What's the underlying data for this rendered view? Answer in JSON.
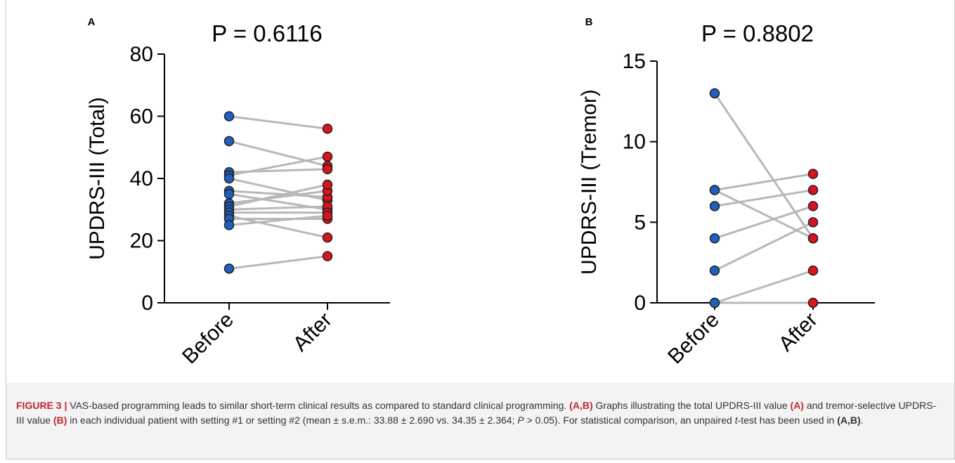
{
  "panels": [
    {
      "label": "A",
      "title": "P = 0.6116",
      "ylabel": "UPDRS-III (Total)",
      "categories": [
        "Before",
        "After"
      ],
      "yticks": [
        0,
        20,
        40,
        60,
        80
      ],
      "ylim": [
        0,
        80
      ]
    },
    {
      "label": "B",
      "title": "P = 0.8802",
      "ylabel": "UPDRS-III (Tremor)",
      "categories": [
        "Before",
        "After"
      ],
      "yticks": [
        0,
        5,
        10,
        15
      ],
      "ylim": [
        0,
        15
      ]
    }
  ],
  "chart_data": [
    {
      "type": "scatter",
      "title": "P = 0.6116",
      "ylabel": "UPDRS-III (Total)",
      "categories": [
        "Before",
        "After"
      ],
      "ylim": [
        0,
        80
      ],
      "series": [
        {
          "name": "Before",
          "color": "#1f5fbf",
          "values": [
            60,
            52,
            42,
            41,
            40,
            36,
            35,
            32,
            31,
            30,
            29,
            28,
            27,
            25,
            11
          ]
        },
        {
          "name": "After",
          "color": "#d8141c",
          "values": [
            56,
            44,
            43,
            47,
            33,
            34,
            30,
            36,
            38,
            31,
            29,
            21,
            27,
            28,
            15
          ]
        }
      ],
      "pairs": [
        [
          60,
          56
        ],
        [
          52,
          44
        ],
        [
          42,
          43
        ],
        [
          41,
          47
        ],
        [
          40,
          33
        ],
        [
          36,
          34
        ],
        [
          35,
          30
        ],
        [
          32,
          36
        ],
        [
          31,
          38
        ],
        [
          30,
          31
        ],
        [
          29,
          29
        ],
        [
          28,
          21
        ],
        [
          27,
          27
        ],
        [
          25,
          28
        ],
        [
          11,
          15
        ]
      ]
    },
    {
      "type": "scatter",
      "title": "P = 0.8802",
      "ylabel": "UPDRS-III (Tremor)",
      "categories": [
        "Before",
        "After"
      ],
      "ylim": [
        0,
        15
      ],
      "series": [
        {
          "name": "Before",
          "color": "#1f5fbf",
          "values": [
            13,
            7,
            7,
            6,
            4,
            2,
            0,
            0
          ]
        },
        {
          "name": "After",
          "color": "#d8141c",
          "values": [
            4,
            8,
            4,
            7,
            6,
            5,
            2,
            0
          ]
        }
      ],
      "pairs": [
        [
          13,
          4
        ],
        [
          7,
          8
        ],
        [
          7,
          4
        ],
        [
          6,
          7
        ],
        [
          4,
          6
        ],
        [
          2,
          5
        ],
        [
          0,
          2
        ],
        [
          0,
          0
        ]
      ]
    }
  ],
  "caption": {
    "figure_label": "FIGURE 3 |",
    "text1": " VAS-based programming leads to similar short-term clinical results as compared to standard clinical programming. ",
    "ref1": "(A,B)",
    "text2": " Graphs illustrating the total UPDRS-III value ",
    "ref2": "(A)",
    "text3": " and tremor-selective UPDRS-III value ",
    "ref3": "(B)",
    "text4": " in each individual patient with setting #1 or setting #2 (mean ± s.e.m.: 33.88 ± 2.690 vs. 34.35 ± 2.364; ",
    "p": "P",
    "text5": " > 0.05). For statistical comparison, an unpaired ",
    "t": "t",
    "text6": "-test has been used in ",
    "ref4": "(A,B)",
    "text7": "."
  }
}
